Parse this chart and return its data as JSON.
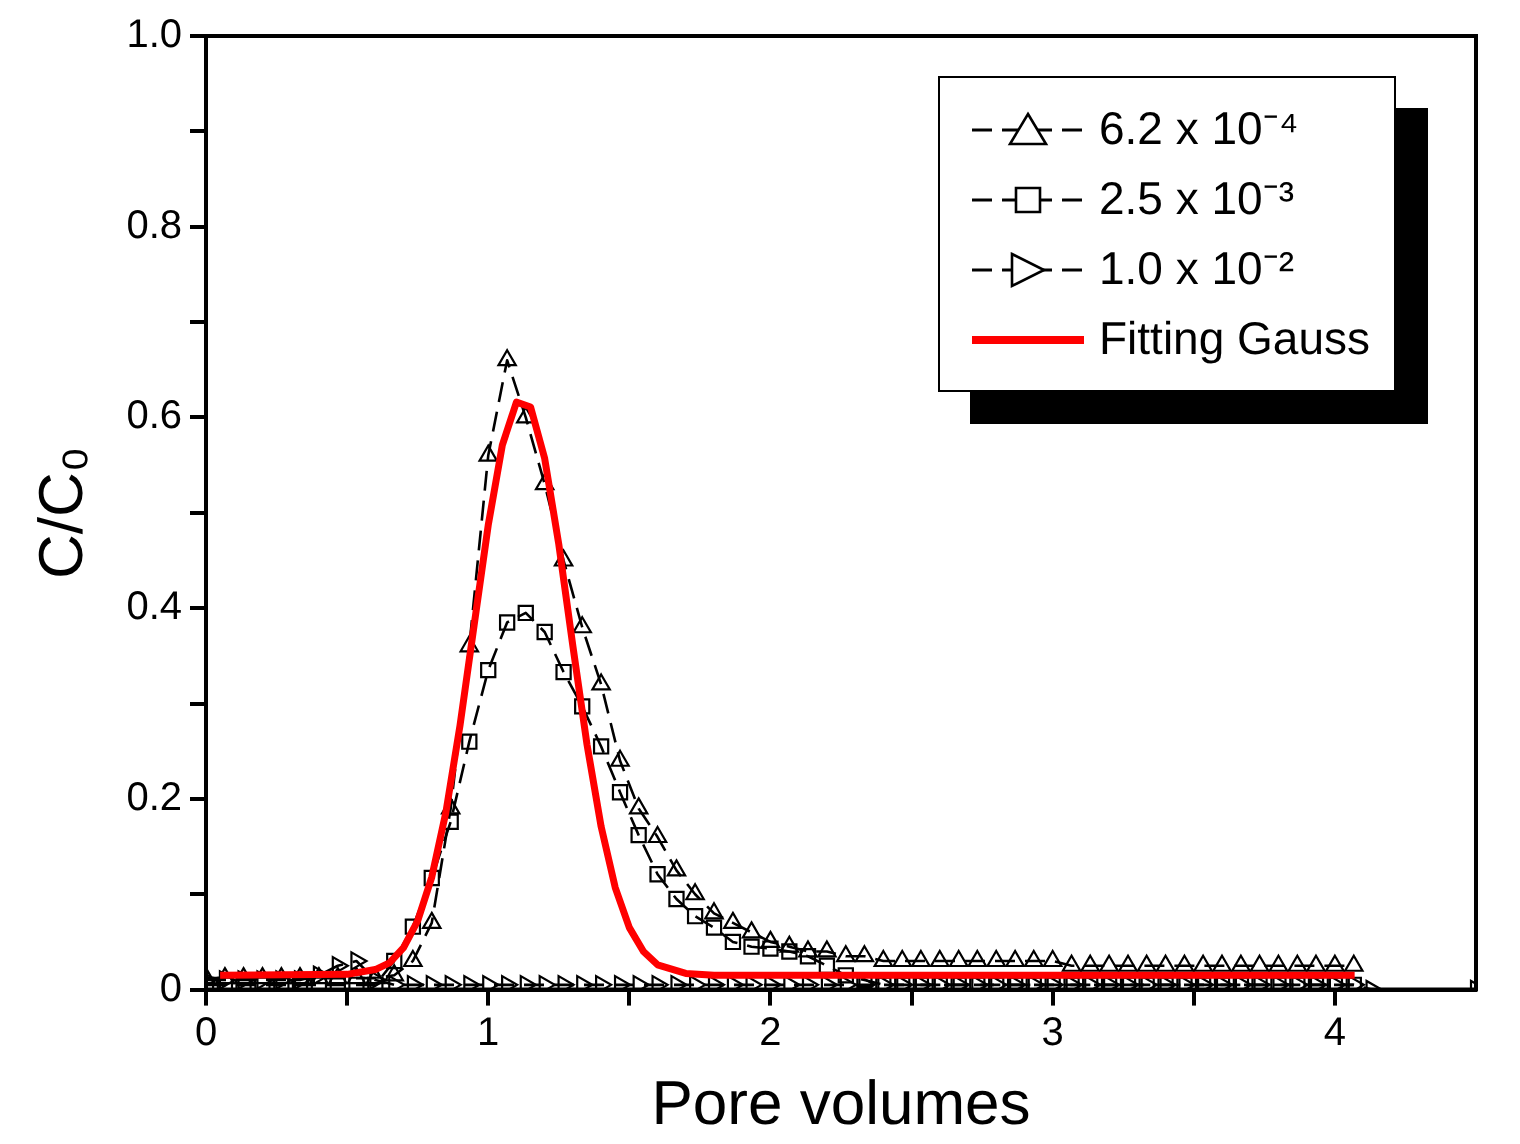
{
  "chart_data": {
    "type": "line",
    "xlabel": "Pore volumes",
    "ylabel": "C/C₀",
    "x": [
      0,
      0.067,
      0.133,
      0.2,
      0.267,
      0.333,
      0.4,
      0.467,
      0.533,
      0.6,
      0.667,
      0.733,
      0.8,
      0.867,
      0.933,
      1.0,
      1.067,
      1.133,
      1.2,
      1.267,
      1.333,
      1.4,
      1.467,
      1.533,
      1.6,
      1.667,
      1.733,
      1.8,
      1.867,
      1.933,
      2.0,
      2.067,
      2.133,
      2.2,
      2.267,
      2.333,
      2.4,
      2.467,
      2.533,
      2.6,
      2.667,
      2.733,
      2.8,
      2.867,
      2.933,
      3.0,
      3.067,
      3.133,
      3.2,
      3.267,
      3.333,
      3.4,
      3.467,
      3.533,
      3.6,
      3.667,
      3.733,
      3.8,
      3.867,
      3.933,
      4.0,
      4.067
    ],
    "series": [
      {
        "name": "6.2 x 10⁻⁴",
        "color": "#000000",
        "marker": "triangle",
        "line_style": "dashed",
        "values": [
          0.012,
          0.012,
          0.012,
          0.012,
          0.012,
          0.012,
          0.012,
          0.012,
          0.012,
          0.012,
          0.015,
          0.03,
          0.07,
          0.19,
          0.36,
          0.56,
          0.66,
          0.6,
          0.53,
          0.45,
          0.38,
          0.32,
          0.24,
          0.19,
          0.16,
          0.125,
          0.1,
          0.08,
          0.07,
          0.06,
          0.05,
          0.045,
          0.04,
          0.04,
          0.035,
          0.035,
          0.03,
          0.03,
          0.03,
          0.03,
          0.03,
          0.03,
          0.03,
          0.03,
          0.03,
          0.03,
          0.025,
          0.025,
          0.025,
          0.025,
          0.025,
          0.025,
          0.025,
          0.025,
          0.025,
          0.025,
          0.025,
          0.025,
          0.025,
          0.025,
          0.025,
          0.025
        ]
      },
      {
        "name": "2.5 x 10⁻³",
        "color": "#000000",
        "marker": "square",
        "line_style": "dashed",
        "values": [
          0.005,
          0.005,
          0.005,
          0.005,
          0.005,
          0.005,
          0.005,
          0.005,
          0.005,
          0.005,
          0.03,
          0.066,
          0.117,
          0.176,
          0.26,
          0.335,
          0.385,
          0.395,
          0.375,
          0.333,
          0.297,
          0.255,
          0.207,
          0.162,
          0.121,
          0.095,
          0.077,
          0.065,
          0.05,
          0.045,
          0.043,
          0.04,
          0.035,
          0.025,
          0.015,
          0.01,
          0.005,
          0.005,
          0.005,
          0.005,
          0.005,
          0.005,
          0.005,
          0.005,
          0.005,
          0.005,
          0.005,
          0.005,
          0.005,
          0.005,
          0.005,
          0.005,
          0.005,
          0.005,
          0.005,
          0.005,
          0.005,
          0.005,
          0.005,
          0.005,
          0.005,
          0.005
        ]
      },
      {
        "name": "1.0 x 10⁻²",
        "color": "#000000",
        "marker": "triangle-right",
        "line_style": "dashed",
        "x": [
          0,
          0.067,
          0.133,
          0.2,
          0.267,
          0.333,
          0.4,
          0.467,
          0.533,
          0.6,
          0.667,
          0.733,
          0.8,
          0.867,
          0.933,
          1.0,
          1.067,
          1.133,
          1.2,
          1.267,
          1.333,
          1.4,
          1.467,
          1.533,
          1.6,
          1.667,
          1.733,
          1.8,
          1.867,
          1.933,
          2.0,
          2.067,
          2.133,
          2.2,
          2.267,
          2.333,
          2.4,
          2.467,
          2.533,
          2.6,
          2.667,
          2.733,
          2.8,
          2.867,
          2.933,
          3.0,
          3.067,
          3.133,
          3.2,
          3.267,
          3.333,
          3.4,
          3.467,
          3.533,
          3.6,
          3.667,
          3.733,
          3.8,
          3.867,
          3.933,
          4.0,
          4.067,
          4.13,
          4.5
        ],
        "values": [
          0.01,
          0.01,
          0.01,
          0.01,
          0.01,
          0.01,
          0.015,
          0.025,
          0.03,
          0.01,
          0.005,
          0.005,
          0.005,
          0.005,
          0.005,
          0.005,
          0.005,
          0.005,
          0.005,
          0.005,
          0.005,
          0.005,
          0.005,
          0.005,
          0.005,
          0.005,
          0.005,
          0.005,
          0.005,
          0.005,
          0.005,
          0.005,
          0.005,
          0.005,
          0.005,
          0.005,
          0.005,
          0.005,
          0.005,
          0.005,
          0.005,
          0.005,
          0.005,
          0.005,
          0.005,
          0.005,
          0.005,
          0.005,
          0.005,
          0.005,
          0.005,
          0.005,
          0.005,
          0.005,
          0.005,
          0.005,
          0.005,
          0.005,
          0.005,
          0.005,
          0.005,
          0.005,
          0,
          0
        ]
      },
      {
        "name": "Fitting Gauss",
        "color": "#ff0000",
        "marker": "none",
        "line_style": "solid",
        "x": [
          0.05,
          0.5,
          0.6,
          0.65,
          0.7,
          0.75,
          0.8,
          0.85,
          0.9,
          0.95,
          1.0,
          1.05,
          1.1,
          1.15,
          1.2,
          1.25,
          1.3,
          1.35,
          1.4,
          1.45,
          1.5,
          1.55,
          1.6,
          1.7,
          1.8,
          4.07
        ],
        "values": [
          0.015,
          0.016,
          0.021,
          0.028,
          0.044,
          0.072,
          0.118,
          0.186,
          0.277,
          0.382,
          0.487,
          0.571,
          0.616,
          0.611,
          0.557,
          0.467,
          0.36,
          0.257,
          0.171,
          0.107,
          0.065,
          0.04,
          0.026,
          0.017,
          0.015,
          0.015
        ]
      }
    ],
    "xlim": [
      0,
      4.5
    ],
    "xticks": [
      0,
      {
        "value": 0.5,
        "label": null
      },
      1,
      {
        "value": 1.5,
        "label": null
      },
      2,
      {
        "value": 2.5,
        "label": null
      },
      3,
      {
        "value": 3.5,
        "label": null
      },
      4
    ],
    "ylim": [
      0,
      1
    ],
    "yticks": [
      0,
      {
        "value": 0.1,
        "label": null
      },
      0.2,
      {
        "value": 0.3,
        "label": null
      },
      0.4,
      {
        "value": 0.5,
        "label": null
      },
      0.6,
      {
        "value": 0.7,
        "label": null
      },
      0.8,
      {
        "value": 0.9,
        "label": null
      },
      {
        "value": 1,
        "label": "1.0"
      }
    ],
    "grid": false,
    "legend": "top right"
  }
}
